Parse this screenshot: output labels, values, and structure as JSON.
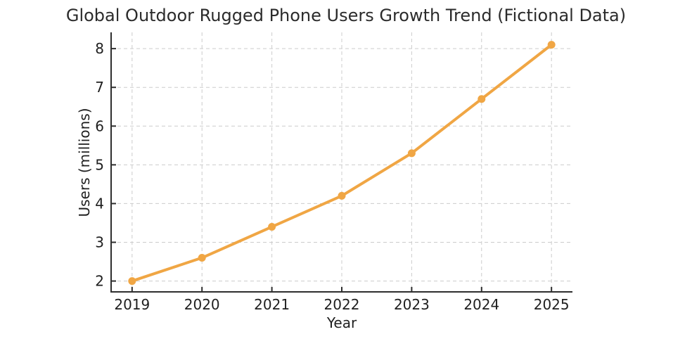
{
  "chart_data": {
    "type": "line",
    "title": "Global Outdoor Rugged Phone Users Growth Trend (Fictional Data)",
    "xlabel": "Year",
    "ylabel": "Users (millions)",
    "categories": [
      2019,
      2020,
      2021,
      2022,
      2023,
      2024,
      2025
    ],
    "series": [
      {
        "name": "Users (millions)",
        "values": [
          2.0,
          2.6,
          3.4,
          4.2,
          5.3,
          6.7,
          8.1
        ]
      }
    ],
    "yticks": [
      2,
      3,
      4,
      5,
      6,
      7,
      8
    ],
    "xlim": [
      2018.7,
      2025.3
    ],
    "ylim": [
      1.72,
      8.42
    ],
    "grid": true,
    "grid_style": "dashed",
    "legend": false,
    "colors": {
      "line": "#F0A644",
      "marker": "#F0A644",
      "grid": "#cccccc",
      "spine": "#2e2e2e",
      "text": "#1f1f1f"
    }
  }
}
